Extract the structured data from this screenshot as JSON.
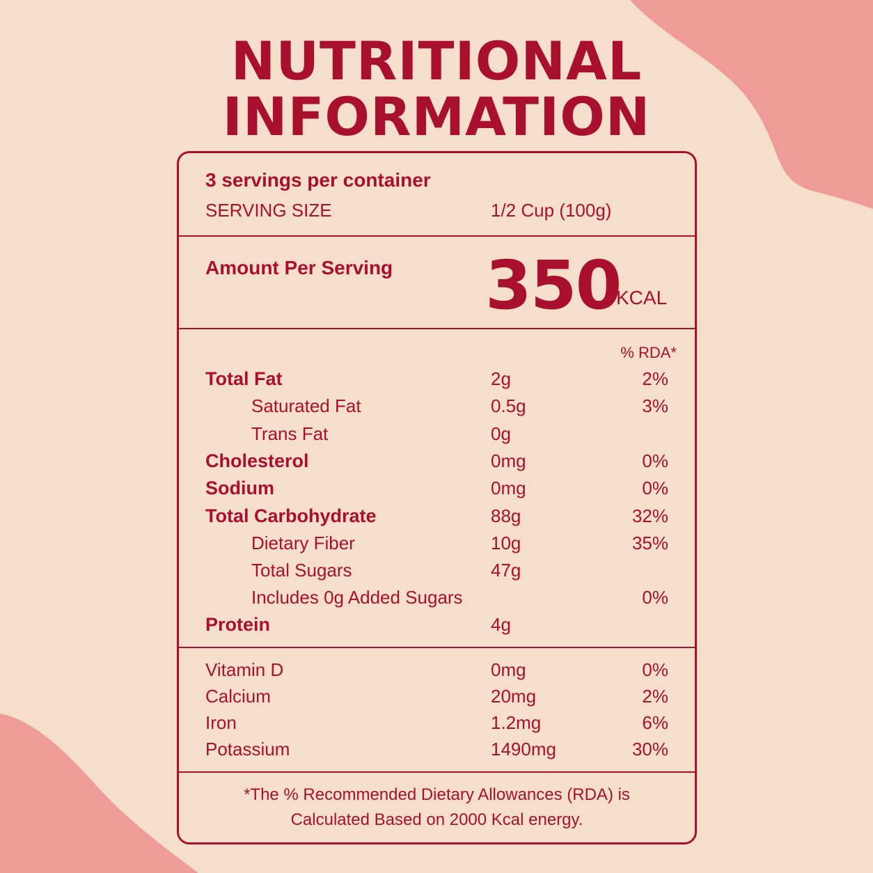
{
  "colors": {
    "background": "#f5dfcb",
    "accent": "#a8102e",
    "blob": "#ef9b98"
  },
  "title": {
    "line1": "NUTRITIONAL",
    "line2": "INFORMATION"
  },
  "serving": {
    "per_container": "3 servings per container",
    "size_label": "SERVING SIZE",
    "size_value": "1/2 Cup (100g)"
  },
  "energy": {
    "label": "Amount Per Serving",
    "value": "350",
    "unit": "KCAL"
  },
  "rda_header": "% RDA*",
  "nutrients": [
    {
      "name": "Total Fat",
      "amount": "2g",
      "rda": "2%"
    },
    {
      "name": "Saturated Fat",
      "amount": "0.5g",
      "rda": "3%"
    },
    {
      "name": "Trans Fat",
      "amount": "0g",
      "rda": ""
    },
    {
      "name": "Cholesterol",
      "amount": "0mg",
      "rda": "0%"
    },
    {
      "name": "Sodium",
      "amount": "0mg",
      "rda": "0%"
    },
    {
      "name": "Total Carbohydrate",
      "amount": "88g",
      "rda": "32%"
    },
    {
      "name": "Dietary Fiber",
      "amount": "10g",
      "rda": "35%"
    },
    {
      "name": "Total Sugars",
      "amount": "47g",
      "rda": ""
    },
    {
      "name": "Includes 0g Added Sugars",
      "amount": "",
      "rda": "0%"
    },
    {
      "name": "Protein",
      "amount": "4g",
      "rda": ""
    }
  ],
  "minerals": [
    {
      "name": "Vitamin D",
      "amount": "0mg",
      "rda": "0%"
    },
    {
      "name": "Calcium",
      "amount": "20mg",
      "rda": "2%"
    },
    {
      "name": "Iron",
      "amount": "1.2mg",
      "rda": "6%"
    },
    {
      "name": "Potassium",
      "amount": "1490mg",
      "rda": "30%"
    }
  ],
  "footnote": {
    "line1": "*The % Recommended Dietary Allowances (RDA) is",
    "line2": "Calculated Based on 2000 Kcal energy."
  }
}
